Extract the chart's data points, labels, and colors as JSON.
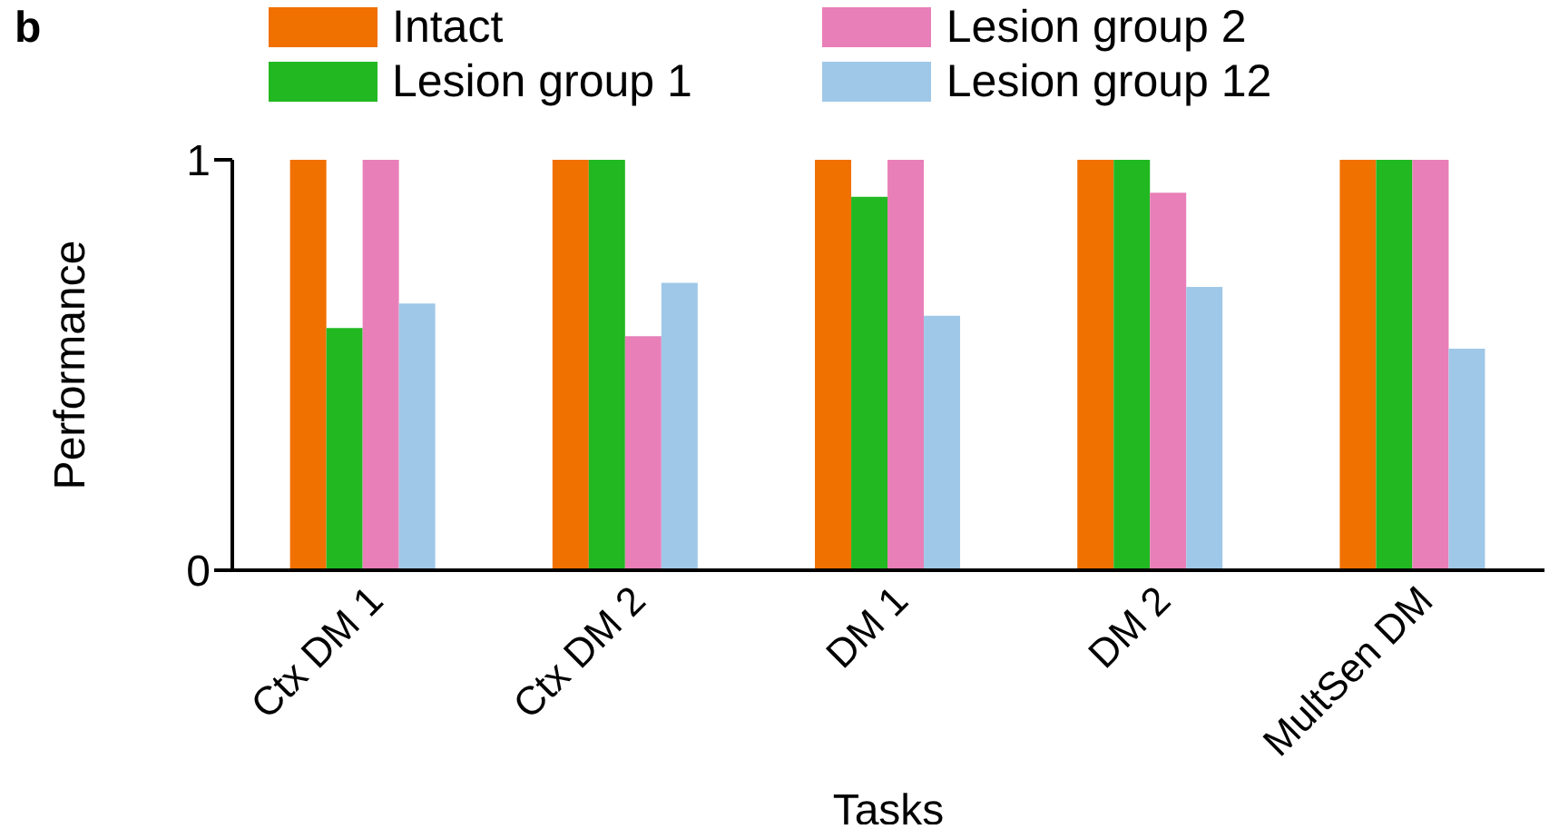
{
  "chart_data": {
    "type": "bar",
    "annotations": [
      "b"
    ],
    "xlabel": "Tasks",
    "ylabel": "Performance",
    "categories": [
      "Ctx DM 1",
      "Ctx DM 2",
      "DM 1",
      "DM 2",
      "MultSen DM"
    ],
    "series": [
      {
        "name": "Intact",
        "color": "#f07000",
        "values": [
          1,
          1,
          1,
          1,
          1
        ]
      },
      {
        "name": "Lesion group 1",
        "color": "#22b822",
        "values": [
          0.59,
          1,
          0.91,
          1,
          1
        ]
      },
      {
        "name": "Lesion group 2",
        "color": "#e87fb8",
        "values": [
          1,
          0.57,
          1,
          0.92,
          1
        ]
      },
      {
        "name": "Lesion group 12",
        "color": "#9fc8e8",
        "values": [
          0.65,
          0.7,
          0.62,
          0.69,
          0.54
        ]
      }
    ],
    "ylim": [
      0,
      1
    ],
    "yticks": [
      0,
      1
    ],
    "grid": false,
    "legend": "top"
  }
}
